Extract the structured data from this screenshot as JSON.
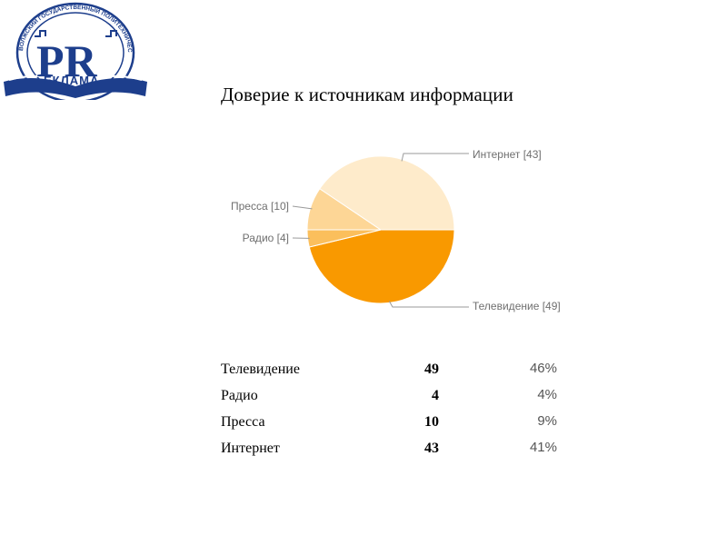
{
  "logo": {
    "big_letters": "PR",
    "word": "ЕКЛАМА",
    "ring_text": "ВОЛЖСКИЙ ГОСУДАРСТВЕННЫЙ ПОЛИТЕХНИЧЕСКИЙ УНИВЕРСИТЕТ",
    "colors": {
      "blue": "#1d3e8c",
      "red": "#d8262e",
      "gold": "#c8a24b"
    }
  },
  "chart_data": {
    "type": "pie",
    "title": "Доверие к источникам информации",
    "slices": [
      {
        "label": "Телевидение [49]",
        "value": 49,
        "color": "#f99900"
      },
      {
        "label": "Радио [4]",
        "value": 4,
        "color": "#fbbf5c"
      },
      {
        "label": "Пресса [10]",
        "value": 10,
        "color": "#fdd696"
      },
      {
        "label": "Интернет [43]",
        "value": 43,
        "color": "#feebcb"
      }
    ]
  },
  "table": {
    "rows": [
      {
        "category": "Телевидение",
        "value": "49",
        "percent": "46%"
      },
      {
        "category": "Радио",
        "value": "4",
        "percent": "4%"
      },
      {
        "category": "Пресса",
        "value": "10",
        "percent": "9%"
      },
      {
        "category": "Интернет",
        "value": "43",
        "percent": "41%"
      }
    ]
  }
}
